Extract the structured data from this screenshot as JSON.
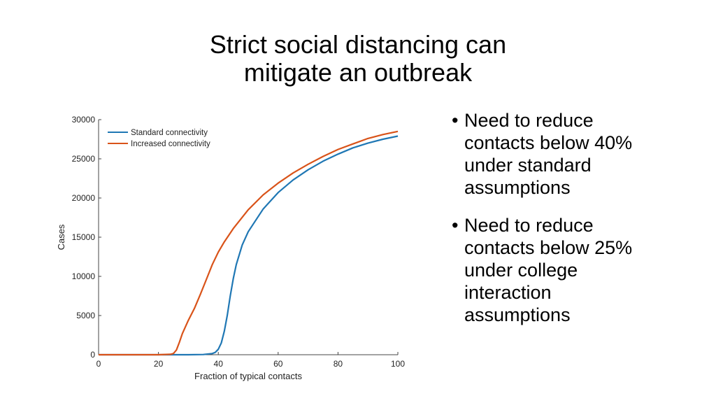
{
  "slide": {
    "title_lines": [
      "Strict social distancing can",
      "mitigate an outbreak"
    ],
    "bullets": [
      {
        "marker": "•",
        "lines": [
          "Need to reduce",
          "contacts below 40%",
          "under standard",
          "assumptions"
        ]
      },
      {
        "marker": "•",
        "lines": [
          "Need to reduce",
          "contacts below 25%",
          "under college",
          "interaction",
          "assumptions"
        ]
      }
    ]
  },
  "chart_data": {
    "type": "line",
    "title": "",
    "xlabel": "Fraction of typical contacts",
    "ylabel": "Cases",
    "xlim": [
      0,
      100
    ],
    "ylim": [
      0,
      30000
    ],
    "xticks": [
      0,
      20,
      40,
      60,
      80,
      100
    ],
    "yticks": [
      0,
      5000,
      10000,
      15000,
      20000,
      25000,
      30000
    ],
    "grid": false,
    "legend_position": "top-left",
    "series": [
      {
        "name": "Standard connectivity",
        "color": "#1f77b4",
        "x": [
          0,
          10,
          20,
          30,
          35,
          38,
          39,
          40,
          41,
          42,
          43,
          44,
          45,
          46,
          48,
          50,
          55,
          60,
          65,
          70,
          75,
          80,
          85,
          90,
          95,
          100
        ],
        "y": [
          0,
          0,
          0,
          0,
          30,
          150,
          300,
          700,
          1500,
          3000,
          5000,
          7500,
          9700,
          11500,
          14000,
          15700,
          18600,
          20700,
          22300,
          23600,
          24700,
          25600,
          26400,
          27000,
          27500,
          27900
        ]
      },
      {
        "name": "Increased connectivity",
        "color": "#d95319",
        "x": [
          0,
          10,
          20,
          24,
          25,
          26,
          27,
          28,
          30,
          32,
          34,
          36,
          38,
          40,
          42,
          45,
          50,
          55,
          60,
          65,
          70,
          75,
          80,
          85,
          90,
          95,
          100
        ],
        "y": [
          0,
          0,
          0,
          50,
          150,
          600,
          1600,
          2700,
          4400,
          5900,
          7700,
          9600,
          11500,
          13100,
          14400,
          16100,
          18500,
          20400,
          21900,
          23200,
          24300,
          25300,
          26200,
          26900,
          27600,
          28100,
          28500
        ]
      }
    ]
  }
}
